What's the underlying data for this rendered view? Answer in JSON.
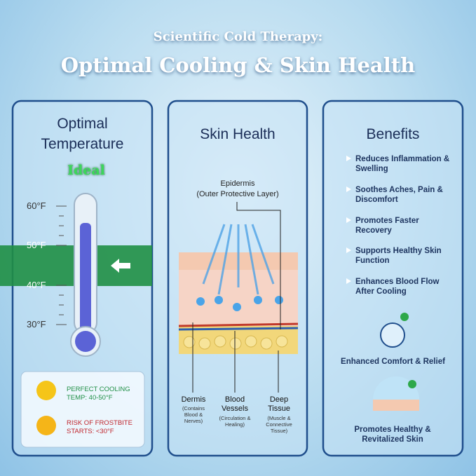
{
  "header": {
    "title": "Scientific Cold Therapy:",
    "subtitle": "Optimal Cooling & Skin Health"
  },
  "temperature_panel": {
    "title": "Optimal Temperature",
    "badge": "Ideal",
    "scale_labels": [
      "60°F",
      "50°F",
      "40°F",
      "30°F"
    ],
    "legend": [
      {
        "text": "PERFECT COOLING TEMP: 40-50°F"
      },
      {
        "text": "RISK OF FROSTBITE STARTS: <30°F"
      }
    ]
  },
  "skin_panel": {
    "title": "Skin Health",
    "top_label": "Epidermis",
    "top_caption": "(Outer Protective Layer)",
    "layers": [
      {
        "label": "Dermis",
        "caption": "(Contains Blood & Nerves)"
      },
      {
        "label": "Blood Vessels",
        "caption": "(Circulation & Healing)"
      },
      {
        "label": "Deep Tissue",
        "caption": "(Muscle & Connective Tissue)"
      }
    ]
  },
  "benefits_panel": {
    "title": "Benefits",
    "items": [
      "Reduces Inflammation & Swelling",
      "Soothes Aches, Pain & Discomfort",
      "Promotes Faster Recovery",
      "Supports Healthy Skin Function",
      "Enhances Blood Flow After Cooling"
    ],
    "icons": [
      "Enhanced Comfort & Relief",
      "Promotes Healthy & Revitalized Skin"
    ]
  }
}
